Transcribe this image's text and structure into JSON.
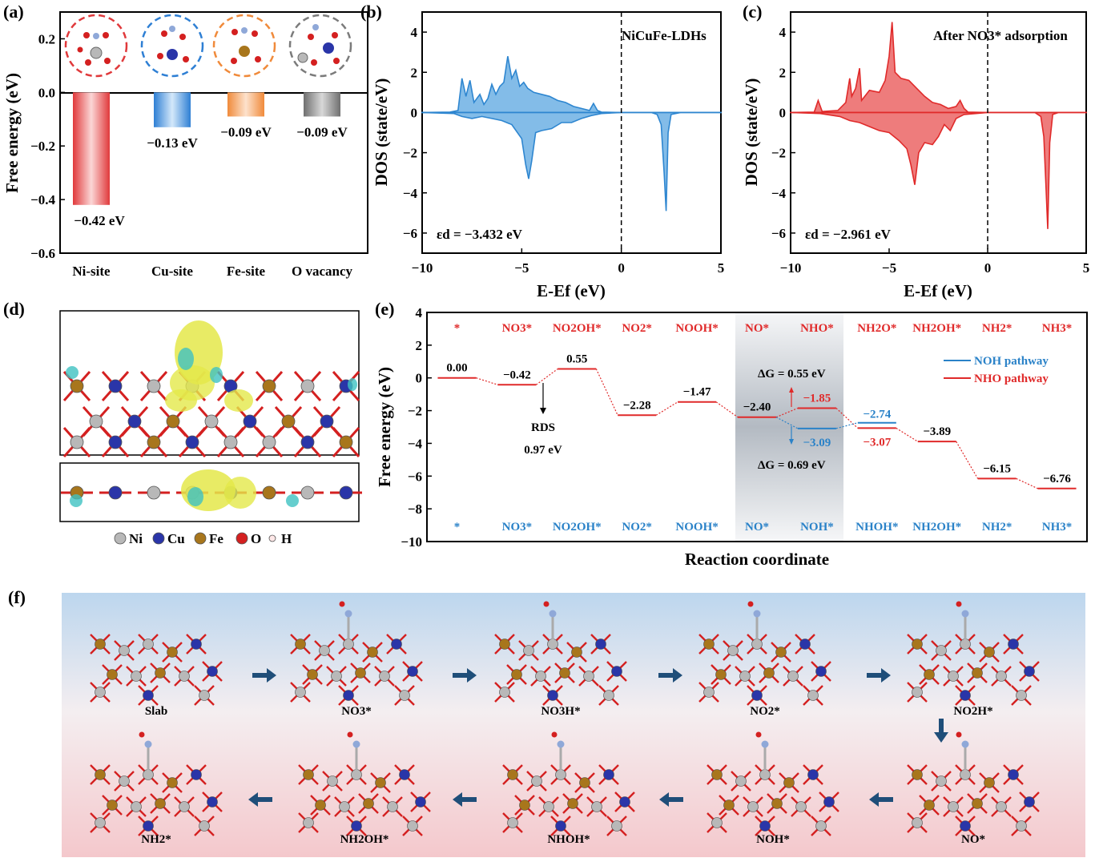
{
  "panel_labels": {
    "a": "(a)",
    "b": "(b)",
    "c": "(c)",
    "d": "(d)",
    "e": "(e)",
    "f": "(f)"
  },
  "chart_data": [
    {
      "id": "a",
      "type": "bar",
      "ylabel": "Free energy (eV)",
      "ylim": [
        -0.6,
        0.3
      ],
      "yticks": [
        "0.2",
        "0.0",
        "−0.2",
        "−0.4",
        "−0.6"
      ],
      "ytick_values": [
        0.2,
        0.0,
        -0.2,
        -0.4,
        -0.6
      ],
      "categories": [
        "Ni-site",
        "Cu-site",
        "Fe-site",
        "O vacancy"
      ],
      "values": [
        -0.42,
        -0.13,
        -0.09,
        -0.09
      ],
      "value_labels": [
        "−0.42 eV",
        "−0.13 eV",
        "−0.09 eV",
        "−0.09 eV"
      ],
      "colors": [
        "#e0393b",
        "#2e7fd4",
        "#f08a3a",
        "#7b7b7b"
      ]
    },
    {
      "id": "b",
      "type": "area",
      "annotation": "NiCuFe-LDHs",
      "eps_label": "εd = −3.432 eV",
      "xlabel": "E-Ef (eV)",
      "ylabel": "DOS (state/eV)",
      "xlim": [
        -10,
        5
      ],
      "ylim": [
        -7,
        5
      ],
      "xticks": [
        "−10",
        "−5",
        "0",
        "5"
      ],
      "xtick_values": [
        -10,
        -5,
        0,
        5
      ],
      "yticks": [
        "4",
        "2",
        "0",
        "−2",
        "−4",
        "−6"
      ],
      "ytick_values": [
        4,
        2,
        0,
        -2,
        -4,
        -6
      ],
      "color": "#2e86d0",
      "fill": "#5aa6e0",
      "spin_up": [
        [
          -10,
          0
        ],
        [
          -8.6,
          0.02
        ],
        [
          -8.2,
          0.1
        ],
        [
          -8.0,
          1.7
        ],
        [
          -7.8,
          0.8
        ],
        [
          -7.6,
          1.6
        ],
        [
          -7.4,
          0.5
        ],
        [
          -7.1,
          0.9
        ],
        [
          -6.9,
          0.4
        ],
        [
          -6.7,
          0.7
        ],
        [
          -6.5,
          1.4
        ],
        [
          -6.3,
          0.9
        ],
        [
          -6.1,
          1.3
        ],
        [
          -5.9,
          1.5
        ],
        [
          -5.7,
          2.8
        ],
        [
          -5.5,
          1.7
        ],
        [
          -5.3,
          2.1
        ],
        [
          -5.1,
          1.3
        ],
        [
          -4.9,
          1.5
        ],
        [
          -4.7,
          1.2
        ],
        [
          -4.4,
          1.0
        ],
        [
          -4.0,
          0.9
        ],
        [
          -3.6,
          0.8
        ],
        [
          -3.2,
          0.6
        ],
        [
          -2.8,
          0.5
        ],
        [
          -2.4,
          0.3
        ],
        [
          -2.0,
          0.2
        ],
        [
          -1.6,
          0.1
        ],
        [
          -1.4,
          0.45
        ],
        [
          -1.2,
          0.1
        ],
        [
          -1.0,
          0.02
        ],
        [
          0,
          0
        ],
        [
          5,
          0
        ]
      ],
      "spin_down": [
        [
          -10,
          0
        ],
        [
          -8.4,
          -0.05
        ],
        [
          -8.0,
          -0.2
        ],
        [
          -7.5,
          -0.3
        ],
        [
          -7.0,
          -0.2
        ],
        [
          -6.5,
          -0.3
        ],
        [
          -6.0,
          -0.4
        ],
        [
          -5.5,
          -0.6
        ],
        [
          -5.0,
          -1.3
        ],
        [
          -4.8,
          -2.6
        ],
        [
          -4.65,
          -3.3
        ],
        [
          -4.5,
          -2.4
        ],
        [
          -4.3,
          -1.0
        ],
        [
          -4.0,
          -0.9
        ],
        [
          -3.5,
          -0.8
        ],
        [
          -3.0,
          -0.5
        ],
        [
          -2.5,
          -0.5
        ],
        [
          -2.0,
          -0.3
        ],
        [
          -1.5,
          -0.15
        ],
        [
          -1.0,
          -0.05
        ],
        [
          0,
          0
        ],
        [
          1.5,
          0
        ],
        [
          1.8,
          -0.1
        ],
        [
          2.0,
          -0.6
        ],
        [
          2.15,
          -3.0
        ],
        [
          2.25,
          -4.9
        ],
        [
          2.35,
          -1.0
        ],
        [
          2.5,
          -0.1
        ],
        [
          3.0,
          0
        ],
        [
          5,
          0
        ]
      ]
    },
    {
      "id": "c",
      "type": "area",
      "annotation": "After NO3* adsorption",
      "eps_label": "εd = −2.961 eV",
      "xlabel": "E-Ef (eV)",
      "ylabel": "DOS (state/eV)",
      "xlim": [
        -10,
        5
      ],
      "ylim": [
        -7,
        5
      ],
      "xticks": [
        "−10",
        "−5",
        "0",
        "5"
      ],
      "xtick_values": [
        -10,
        -5,
        0,
        5
      ],
      "yticks": [
        "4",
        "2",
        "0",
        "−2",
        "−4",
        "−6"
      ],
      "ytick_values": [
        4,
        2,
        0,
        -2,
        -4,
        -6
      ],
      "color": "#e02a2a",
      "fill": "#e85050",
      "spin_up": [
        [
          -10,
          0
        ],
        [
          -8.8,
          0.02
        ],
        [
          -8.6,
          0.6
        ],
        [
          -8.4,
          0.05
        ],
        [
          -7.6,
          0.1
        ],
        [
          -7.2,
          0.5
        ],
        [
          -7.0,
          1.7
        ],
        [
          -6.9,
          0.8
        ],
        [
          -6.7,
          1.2
        ],
        [
          -6.5,
          2.2
        ],
        [
          -6.4,
          0.6
        ],
        [
          -6.0,
          1.1
        ],
        [
          -5.5,
          1.0
        ],
        [
          -5.2,
          1.6
        ],
        [
          -5.0,
          2.8
        ],
        [
          -4.85,
          4.5
        ],
        [
          -4.7,
          2.0
        ],
        [
          -4.4,
          1.7
        ],
        [
          -4.0,
          1.6
        ],
        [
          -3.6,
          1.2
        ],
        [
          -3.2,
          0.8
        ],
        [
          -2.8,
          0.5
        ],
        [
          -2.4,
          0.4
        ],
        [
          -2.0,
          0.2
        ],
        [
          -1.6,
          0.3
        ],
        [
          -1.4,
          0.6
        ],
        [
          -1.2,
          0.2
        ],
        [
          -1.0,
          0.02
        ],
        [
          0,
          0
        ],
        [
          5,
          0
        ]
      ],
      "spin_down": [
        [
          -10,
          0
        ],
        [
          -8.5,
          -0.05
        ],
        [
          -7.5,
          -0.2
        ],
        [
          -7.0,
          -0.4
        ],
        [
          -6.5,
          -0.5
        ],
        [
          -6.0,
          -0.7
        ],
        [
          -5.5,
          -0.9
        ],
        [
          -5.0,
          -1.0
        ],
        [
          -4.5,
          -1.4
        ],
        [
          -4.1,
          -1.8
        ],
        [
          -3.9,
          -2.6
        ],
        [
          -3.7,
          -3.6
        ],
        [
          -3.5,
          -2.0
        ],
        [
          -3.2,
          -1.5
        ],
        [
          -2.8,
          -1.6
        ],
        [
          -2.5,
          -1.2
        ],
        [
          -2.2,
          -0.6
        ],
        [
          -1.9,
          -0.9
        ],
        [
          -1.6,
          -0.3
        ],
        [
          -1.2,
          -0.1
        ],
        [
          0,
          0
        ],
        [
          2.4,
          0
        ],
        [
          2.7,
          -0.2
        ],
        [
          2.85,
          -1.2
        ],
        [
          2.95,
          -3.5
        ],
        [
          3.05,
          -5.8
        ],
        [
          3.15,
          -1.5
        ],
        [
          3.3,
          -0.1
        ],
        [
          3.6,
          0
        ],
        [
          5,
          0
        ]
      ]
    },
    {
      "id": "e",
      "type": "line",
      "xlabel": "Reaction coordinate",
      "ylabel": "Free energy (eV)",
      "ylim": [
        -10,
        4
      ],
      "yticks": [
        "4",
        "2",
        "0",
        "−2",
        "−4",
        "−6",
        "−8",
        "−10"
      ],
      "ytick_values": [
        4,
        2,
        0,
        -2,
        -4,
        -6,
        -8,
        -10
      ],
      "top_labels": [
        "*",
        "NO3*",
        "NO2OH*",
        "NO2*",
        "NOOH*",
        "NO*",
        "NHO*",
        "NH2O*",
        "NH2OH*",
        "NH2*",
        "NH3*"
      ],
      "bottom_labels": [
        "*",
        "NO3*",
        "NO2OH*",
        "NO2*",
        "NOOH*",
        "NO*",
        "NOH*",
        "NHOH*",
        "NH2OH*",
        "NH2*",
        "NH3*"
      ],
      "series": [
        {
          "name": "NHO pathway",
          "color": "#e02a2a",
          "values": [
            0.0,
            -0.42,
            0.55,
            -2.28,
            -1.47,
            -2.4,
            -1.85,
            -3.07,
            -3.89,
            -6.15,
            -6.76
          ]
        },
        {
          "name": "NOH pathway",
          "color": "#2a82c8",
          "values": [
            null,
            null,
            null,
            null,
            null,
            -2.4,
            -3.09,
            -2.74,
            null,
            null,
            null
          ]
        }
      ],
      "value_labels": [
        {
          "text": "0.00",
          "color": "#000000"
        },
        {
          "text": "−0.42",
          "color": "#000000"
        },
        {
          "text": "0.55",
          "color": "#000000"
        },
        {
          "text": "−2.28",
          "color": "#000000"
        },
        {
          "text": "−1.47",
          "color": "#000000"
        },
        {
          "text": "−2.40",
          "color": "#000000"
        },
        {
          "text": "−1.85",
          "color": "#e02a2a"
        },
        {
          "text": "−3.07",
          "color": "#e02a2a"
        },
        {
          "text": "−3.89",
          "color": "#000000"
        },
        {
          "text": "−6.15",
          "color": "#000000"
        },
        {
          "text": "−6.76",
          "color": "#000000"
        },
        {
          "text": "−3.09",
          "color": "#2a82c8"
        },
        {
          "text": "−2.74",
          "color": "#2a82c8"
        }
      ],
      "annotations": {
        "rds_title": "RDS",
        "rds_value": "0.97 eV",
        "dg_nho": "ΔG = 0.55 eV",
        "dg_noh": "ΔG = 0.69 eV"
      }
    }
  ],
  "legend_d": {
    "items": [
      "Ni",
      "Cu",
      "Fe",
      "O",
      "H"
    ],
    "colors": [
      "#b8b8b8",
      "#2a35a8",
      "#a8761c",
      "#d42020",
      "#ffe8e8"
    ]
  },
  "panel_f": {
    "row1": [
      "Slab",
      "NO3*",
      "NO3H*",
      "NO2*",
      "NO2H*"
    ],
    "row2": [
      "NH2*",
      "NH2OH*",
      "NHOH*",
      "NOH*",
      "NO*"
    ]
  }
}
